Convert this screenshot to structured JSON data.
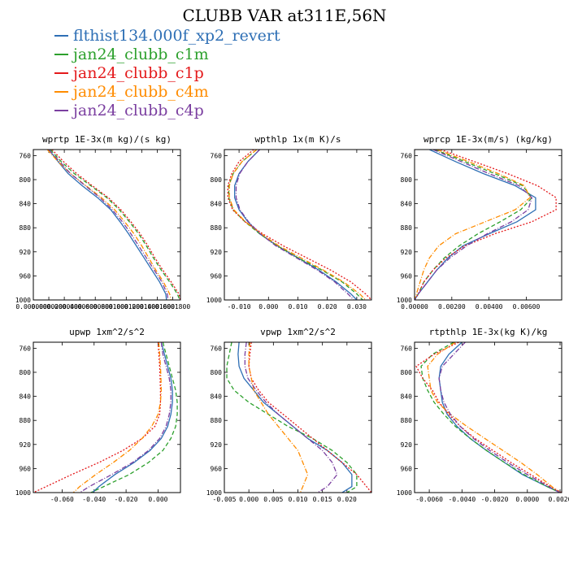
{
  "figure": {
    "title": "CLUBB VAR at311E,56N"
  },
  "legend": [
    {
      "name": "flthist134.000f_xp2_revert",
      "color": "#2e6fb5",
      "dash": "solid"
    },
    {
      "name": "jan24_clubb_c1m",
      "color": "#2ca02c",
      "dash": "dashed"
    },
    {
      "name": "jan24_clubb_c1p",
      "color": "#e41a1c",
      "dash": "dotted"
    },
    {
      "name": "jan24_clubb_c4m",
      "color": "#ff8c00",
      "dash": "dashdot"
    },
    {
      "name": "jan24_clubb_c4p",
      "color": "#7b3fa0",
      "dash": "dashdot"
    }
  ],
  "chart_data": [
    {
      "type": "line",
      "title": "wprtp  1E-3x(m kg)/(s kg)",
      "xlim": [
        0,
        0.00019
      ],
      "ylim": [
        1000,
        750
      ],
      "xticks": [
        0,
        2e-05,
        4e-05,
        6e-05,
        8e-05,
        0.0001,
        0.00012,
        0.00014,
        0.00016,
        0.00018
      ],
      "xtick_labels": [
        "0.0000000",
        "0.0000200",
        "0.0000400",
        "0.0000600",
        "0.0000800",
        "0.0001000",
        "0.0001200",
        "0.0001400",
        "0.0001600",
        "0.0001800"
      ],
      "yticks": [
        760,
        800,
        840,
        880,
        920,
        960,
        1000
      ],
      "y": [
        750,
        770,
        790,
        810,
        830,
        850,
        870,
        890,
        910,
        930,
        950,
        970,
        990,
        1000
      ],
      "series": [
        {
          "name": "flthist134.000f_xp2_revert",
          "values": [
            2e-05,
            3.2e-05,
            4.5e-05,
            6.3e-05,
            8.3e-05,
            0.0001,
            0.000112,
            0.000123,
            0.000133,
            0.000143,
            0.000153,
            0.000163,
            0.000171,
            0.000172
          ]
        },
        {
          "name": "jan24_clubb_c1m",
          "values": [
            2.2e-05,
            3.6e-05,
            5.3e-05,
            7.4e-05,
            9.5e-05,
            0.000111,
            0.000124,
            0.000136,
            0.000146,
            0.000155,
            0.000165,
            0.000176,
            0.000186,
            0.000189
          ]
        },
        {
          "name": "jan24_clubb_c1p",
          "values": [
            2.4e-05,
            3.9e-05,
            5.6e-05,
            7.6e-05,
            9.7e-05,
            0.000113,
            0.000126,
            0.000138,
            0.000148,
            0.000157,
            0.000167,
            0.000178,
            0.000188,
            0.00019
          ]
        },
        {
          "name": "jan24_clubb_c4m",
          "values": [
            1.8e-05,
            3.2e-05,
            4.8e-05,
            6.8e-05,
            8.8e-05,
            0.000105,
            0.000118,
            0.00013,
            0.00014,
            0.000149,
            0.000158,
            0.000168,
            0.000176,
            0.000178
          ]
        },
        {
          "name": "jan24_clubb_c4p",
          "values": [
            2e-05,
            3.4e-05,
            4.8e-05,
            6.7e-05,
            8.6e-05,
            0.000102,
            0.000115,
            0.000126,
            0.000136,
            0.000146,
            0.000156,
            0.000166,
            0.000173,
            0.000174
          ]
        }
      ]
    },
    {
      "type": "line",
      "title": "wpthlp  1x(m K)/s",
      "xlim": [
        -0.015,
        0.035
      ],
      "ylim": [
        1000,
        750
      ],
      "xticks": [
        -0.01,
        0,
        0.01,
        0.02,
        0.03
      ],
      "xtick_labels": [
        "-0.010",
        "0.000",
        "0.010",
        "0.020",
        "0.030"
      ],
      "yticks": [
        760,
        800,
        840,
        880,
        920,
        960,
        1000
      ],
      "y": [
        750,
        770,
        790,
        810,
        830,
        850,
        870,
        890,
        910,
        930,
        950,
        970,
        990,
        1000
      ],
      "series": [
        {
          "name": "flthist134.000f_xp2_revert",
          "values": [
            -0.003,
            -0.007,
            -0.01,
            -0.0115,
            -0.0115,
            -0.01,
            -0.007,
            -0.003,
            0.003,
            0.01,
            0.017,
            0.023,
            0.028,
            0.03
          ]
        },
        {
          "name": "jan24_clubb_c1m",
          "values": [
            -0.004,
            -0.009,
            -0.012,
            -0.0135,
            -0.0135,
            -0.012,
            -0.008,
            -0.003,
            0.003,
            0.01,
            0.018,
            0.025,
            0.03,
            0.032
          ]
        },
        {
          "name": "jan24_clubb_c1p",
          "values": [
            -0.005,
            -0.01,
            -0.0125,
            -0.0138,
            -0.0138,
            -0.0122,
            -0.008,
            -0.002,
            0.005,
            0.013,
            0.021,
            0.028,
            0.033,
            0.035
          ]
        },
        {
          "name": "jan24_clubb_c4m",
          "values": [
            -0.004,
            -0.009,
            -0.012,
            -0.0133,
            -0.0133,
            -0.0118,
            -0.0078,
            -0.0025,
            0.0035,
            0.011,
            0.0185,
            0.0255,
            0.031,
            0.033
          ]
        },
        {
          "name": "jan24_clubb_c4p",
          "values": [
            -0.003,
            -0.007,
            -0.0098,
            -0.011,
            -0.011,
            -0.0097,
            -0.0068,
            -0.0028,
            0.0025,
            0.0095,
            0.0165,
            0.0225,
            0.027,
            0.029
          ]
        }
      ]
    },
    {
      "type": "line",
      "title": "wprcp  1E-3x(m/s) (kg/kg)",
      "xlim": [
        0,
        0.0079
      ],
      "ylim": [
        1000,
        750
      ],
      "xticks": [
        0,
        0.002,
        0.004,
        0.006
      ],
      "xtick_labels": [
        "0.00000",
        "0.00200",
        "0.00400",
        "0.00600"
      ],
      "yticks": [
        760,
        800,
        840,
        880,
        920,
        960,
        1000
      ],
      "y": [
        750,
        770,
        790,
        810,
        830,
        850,
        870,
        890,
        910,
        930,
        950,
        970,
        990,
        1000
      ],
      "series": [
        {
          "name": "flthist134.000f_xp2_revert",
          "values": [
            0.0008,
            0.0022,
            0.0037,
            0.0054,
            0.0065,
            0.0065,
            0.0055,
            0.004,
            0.0026,
            0.0018,
            0.0012,
            0.0007,
            0.0002,
            0
          ]
        },
        {
          "name": "jan24_clubb_c1m",
          "values": [
            0.0011,
            0.0027,
            0.0043,
            0.0058,
            0.0063,
            0.0057,
            0.0046,
            0.0034,
            0.0024,
            0.0016,
            0.001,
            0.0005,
            0.0002,
            0
          ]
        },
        {
          "name": "jan24_clubb_c1p",
          "values": [
            0.0014,
            0.0032,
            0.005,
            0.0066,
            0.0076,
            0.0076,
            0.0063,
            0.0043,
            0.0027,
            0.0017,
            0.001,
            0.0005,
            0.0002,
            0
          ]
        },
        {
          "name": "jan24_clubb_c4m",
          "values": [
            0.0012,
            0.0029,
            0.0045,
            0.0059,
            0.0062,
            0.0054,
            0.0038,
            0.0022,
            0.0013,
            0.0008,
            0.0005,
            0.0003,
            0.0001,
            0
          ]
        },
        {
          "name": "jan24_clubb_c4p",
          "values": [
            0.001,
            0.0025,
            0.004,
            0.0056,
            0.0063,
            0.0061,
            0.0052,
            0.0039,
            0.0028,
            0.0019,
            0.0012,
            0.0007,
            0.0002,
            0
          ]
        }
      ]
    },
    {
      "type": "line",
      "title": "upwp  1xm^2/s^2",
      "xlim": [
        -0.078,
        0.014
      ],
      "ylim": [
        1000,
        750
      ],
      "xticks": [
        -0.06,
        -0.04,
        -0.02,
        0
      ],
      "xtick_labels": [
        "-0.060",
        "-0.040",
        "-0.020",
        "0.000"
      ],
      "yticks": [
        760,
        800,
        840,
        880,
        920,
        960,
        1000
      ],
      "y": [
        750,
        770,
        790,
        810,
        830,
        850,
        870,
        890,
        910,
        930,
        950,
        970,
        990,
        1000
      ],
      "series": [
        {
          "name": "flthist134.000f_xp2_revert",
          "values": [
            0.002,
            0.004,
            0.006,
            0.008,
            0.009,
            0.009,
            0.008,
            0.006,
            0.002,
            -0.005,
            -0.015,
            -0.027,
            -0.037,
            -0.041
          ]
        },
        {
          "name": "jan24_clubb_c1m",
          "values": [
            0.003,
            0.005,
            0.007,
            0.009,
            0.011,
            0.012,
            0.012,
            0.011,
            0.008,
            0.003,
            -0.006,
            -0.018,
            -0.034,
            -0.042
          ]
        },
        {
          "name": "jan24_clubb_c1p",
          "values": [
            0,
            0.0005,
            0.001,
            0.0013,
            0.0015,
            0.0015,
            0.001,
            -0.002,
            -0.01,
            -0.022,
            -0.037,
            -0.054,
            -0.07,
            -0.078
          ]
        },
        {
          "name": "jan24_clubb_c4m",
          "values": [
            0.0005,
            0.001,
            0.0015,
            0.0018,
            0.002,
            0.0015,
            0,
            -0.004,
            -0.01,
            -0.018,
            -0.028,
            -0.039,
            -0.049,
            -0.053
          ]
        },
        {
          "name": "jan24_clubb_c4p",
          "values": [
            0.002,
            0.003,
            0.005,
            0.007,
            0.008,
            0.008,
            0.007,
            0.005,
            0.001,
            -0.006,
            -0.016,
            -0.029,
            -0.043,
            -0.049
          ]
        }
      ]
    },
    {
      "type": "line",
      "title": "vpwp  1xm^2/s^2",
      "xlim": [
        -0.005,
        0.025
      ],
      "ylim": [
        1000,
        750
      ],
      "xticks": [
        -0.005,
        0,
        0.005,
        0.01,
        0.015,
        0.02
      ],
      "xtick_labels": [
        "-0.005",
        "0.000",
        "0.005",
        "0.010",
        "0.015",
        "0.020"
      ],
      "yticks": [
        760,
        800,
        840,
        880,
        920,
        960,
        1000
      ],
      "y": [
        750,
        770,
        790,
        810,
        830,
        850,
        870,
        890,
        910,
        930,
        950,
        970,
        990,
        1000
      ],
      "series": [
        {
          "name": "flthist134.000f_xp2_revert",
          "values": [
            -0.002,
            -0.0022,
            -0.002,
            -0.001,
            0.001,
            0.003,
            0.006,
            0.009,
            0.012,
            0.016,
            0.019,
            0.021,
            0.021,
            0.019
          ]
        },
        {
          "name": "jan24_clubb_c1m",
          "values": [
            -0.0035,
            -0.004,
            -0.0045,
            -0.0045,
            -0.003,
            0,
            0.004,
            0.008,
            0.013,
            0.017,
            0.02,
            0.022,
            0.022,
            0.02
          ]
        },
        {
          "name": "jan24_clubb_c1p",
          "values": [
            0.0005,
            0.0002,
            0,
            0.0005,
            0.002,
            0.004,
            0.007,
            0.01,
            0.013,
            0.016,
            0.019,
            0.022,
            0.024,
            0.025
          ]
        },
        {
          "name": "jan24_clubb_c4m",
          "values": [
            0.0002,
            0,
            0,
            0.0005,
            0.001,
            0.0025,
            0.004,
            0.006,
            0.008,
            0.01,
            0.011,
            0.012,
            0.011,
            0.0105
          ]
        },
        {
          "name": "jan24_clubb_c4p",
          "values": [
            -0.0005,
            -0.0008,
            -0.0008,
            -0.0002,
            0.0015,
            0.0035,
            0.006,
            0.009,
            0.012,
            0.015,
            0.017,
            0.018,
            0.016,
            0.014
          ]
        }
      ]
    },
    {
      "type": "line",
      "title": "rtpthlp  1E-3x(kg K)/kg",
      "xlim": [
        -0.0069,
        0.0021
      ],
      "ylim": [
        1000,
        750
      ],
      "xticks": [
        -0.006,
        -0.004,
        -0.002,
        0,
        0.002
      ],
      "xtick_labels": [
        "-0.0060",
        "-0.0040",
        "-0.0020",
        "0.0000",
        "0.0020"
      ],
      "yticks": [
        760,
        800,
        840,
        880,
        920,
        960,
        1000
      ],
      "y": [
        750,
        770,
        790,
        810,
        830,
        850,
        870,
        890,
        910,
        930,
        950,
        970,
        990,
        1000
      ],
      "series": [
        {
          "name": "flthist134.000f_xp2_revert",
          "values": [
            -0.004,
            -0.0048,
            -0.0053,
            -0.0054,
            -0.0053,
            -0.0052,
            -0.0049,
            -0.0043,
            -0.0035,
            -0.0025,
            -0.0014,
            -0.0003,
            0.0012,
            0.002
          ]
        },
        {
          "name": "jan24_clubb_c1m",
          "values": [
            -0.0045,
            -0.0058,
            -0.0065,
            -0.0064,
            -0.0061,
            -0.0057,
            -0.0051,
            -0.0044,
            -0.0035,
            -0.0025,
            -0.0014,
            -0.0002,
            0.0012,
            0.002
          ]
        },
        {
          "name": "jan24_clubb_c1p",
          "values": [
            -0.0042,
            -0.0057,
            -0.0068,
            -0.0064,
            -0.0058,
            -0.0054,
            -0.0048,
            -0.0041,
            -0.0032,
            -0.0021,
            -0.001,
            0.0002,
            0.0014,
            0.0021
          ]
        },
        {
          "name": "jan24_clubb_c4m",
          "values": [
            -0.0044,
            -0.0055,
            -0.0061,
            -0.006,
            -0.0059,
            -0.0055,
            -0.0047,
            -0.0037,
            -0.0026,
            -0.0015,
            -0.0004,
            0.0006,
            0.0015,
            0.002
          ]
        },
        {
          "name": "jan24_clubb_c4p",
          "values": [
            -0.0038,
            -0.0045,
            -0.0052,
            -0.0054,
            -0.0053,
            -0.0051,
            -0.0047,
            -0.0041,
            -0.0033,
            -0.0023,
            -0.0012,
            0,
            0.0013,
            0.002
          ]
        }
      ]
    }
  ]
}
